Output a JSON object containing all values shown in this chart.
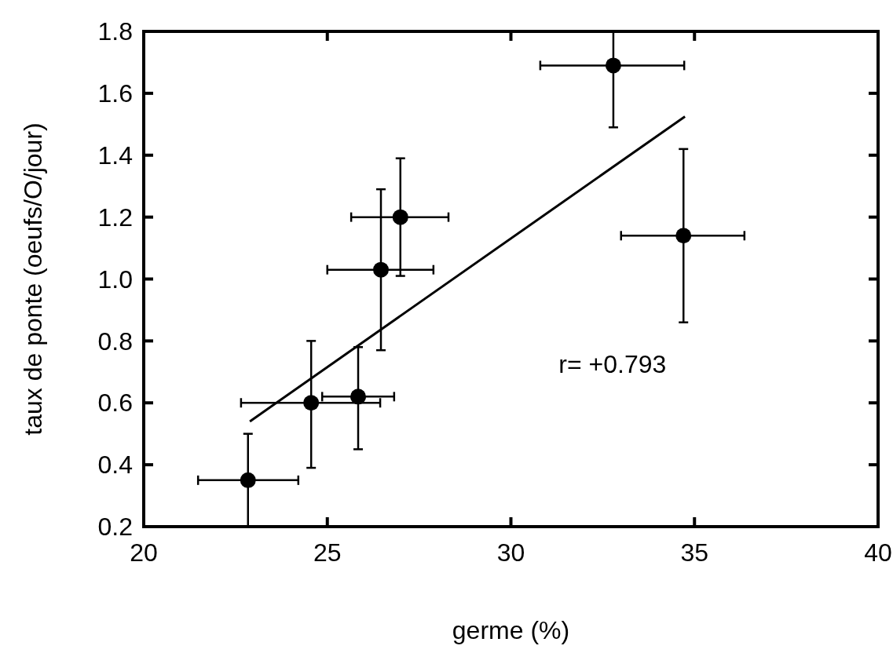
{
  "chart_data": {
    "type": "scatter",
    "xlabel": "germe (%)",
    "ylabel": "taux de ponte (oeufs/O/jour)",
    "xlim": [
      20,
      40
    ],
    "xticks": [
      20,
      25,
      30,
      35,
      40
    ],
    "ylim": [
      0.2,
      1.8
    ],
    "yticks": [
      {
        "value": 0.2,
        "label": "0.2"
      },
      {
        "value": 0.4,
        "label": "0.4"
      },
      {
        "value": 0.6,
        "label": "0.6"
      },
      {
        "value": 0.8,
        "label": "0.8"
      },
      {
        "value": 1.0,
        "label": "1.0"
      },
      {
        "value": 1.2,
        "label": "1.2"
      },
      {
        "value": 1.4,
        "label": "1.4"
      },
      {
        "value": 1.6,
        "label": "1.6"
      },
      {
        "value": 1.8,
        "label": "1.8"
      }
    ],
    "grid": false,
    "annotations": [
      "r= +0.793"
    ],
    "series": [
      {
        "marker": "circle",
        "color": "#000000",
        "x": [
          22.84,
          24.56,
          25.84,
          26.46,
          26.99,
          32.79,
          34.7
        ],
        "values": [
          0.35,
          0.6,
          0.62,
          1.03,
          1.2,
          1.69,
          1.14
        ],
        "xerrors": [
          [
            21.48,
            24.21
          ],
          [
            22.65,
            26.44
          ],
          [
            24.86,
            26.82
          ],
          [
            25.0,
            27.89
          ],
          [
            25.65,
            28.3
          ],
          [
            30.8,
            34.72
          ],
          [
            33.0,
            36.36
          ]
        ],
        "errors": [
          [
            0.2,
            0.5
          ],
          [
            0.39,
            0.8
          ],
          [
            0.45,
            0.78
          ],
          [
            0.77,
            1.29
          ],
          [
            1.01,
            1.39
          ],
          [
            1.49,
            1.8
          ],
          [
            0.86,
            1.42
          ]
        ]
      },
      {
        "type": "line",
        "color": "#000000",
        "x": [
          22.89,
          34.74
        ],
        "values": [
          0.54,
          1.525
        ],
        "marker": "none"
      }
    ]
  }
}
